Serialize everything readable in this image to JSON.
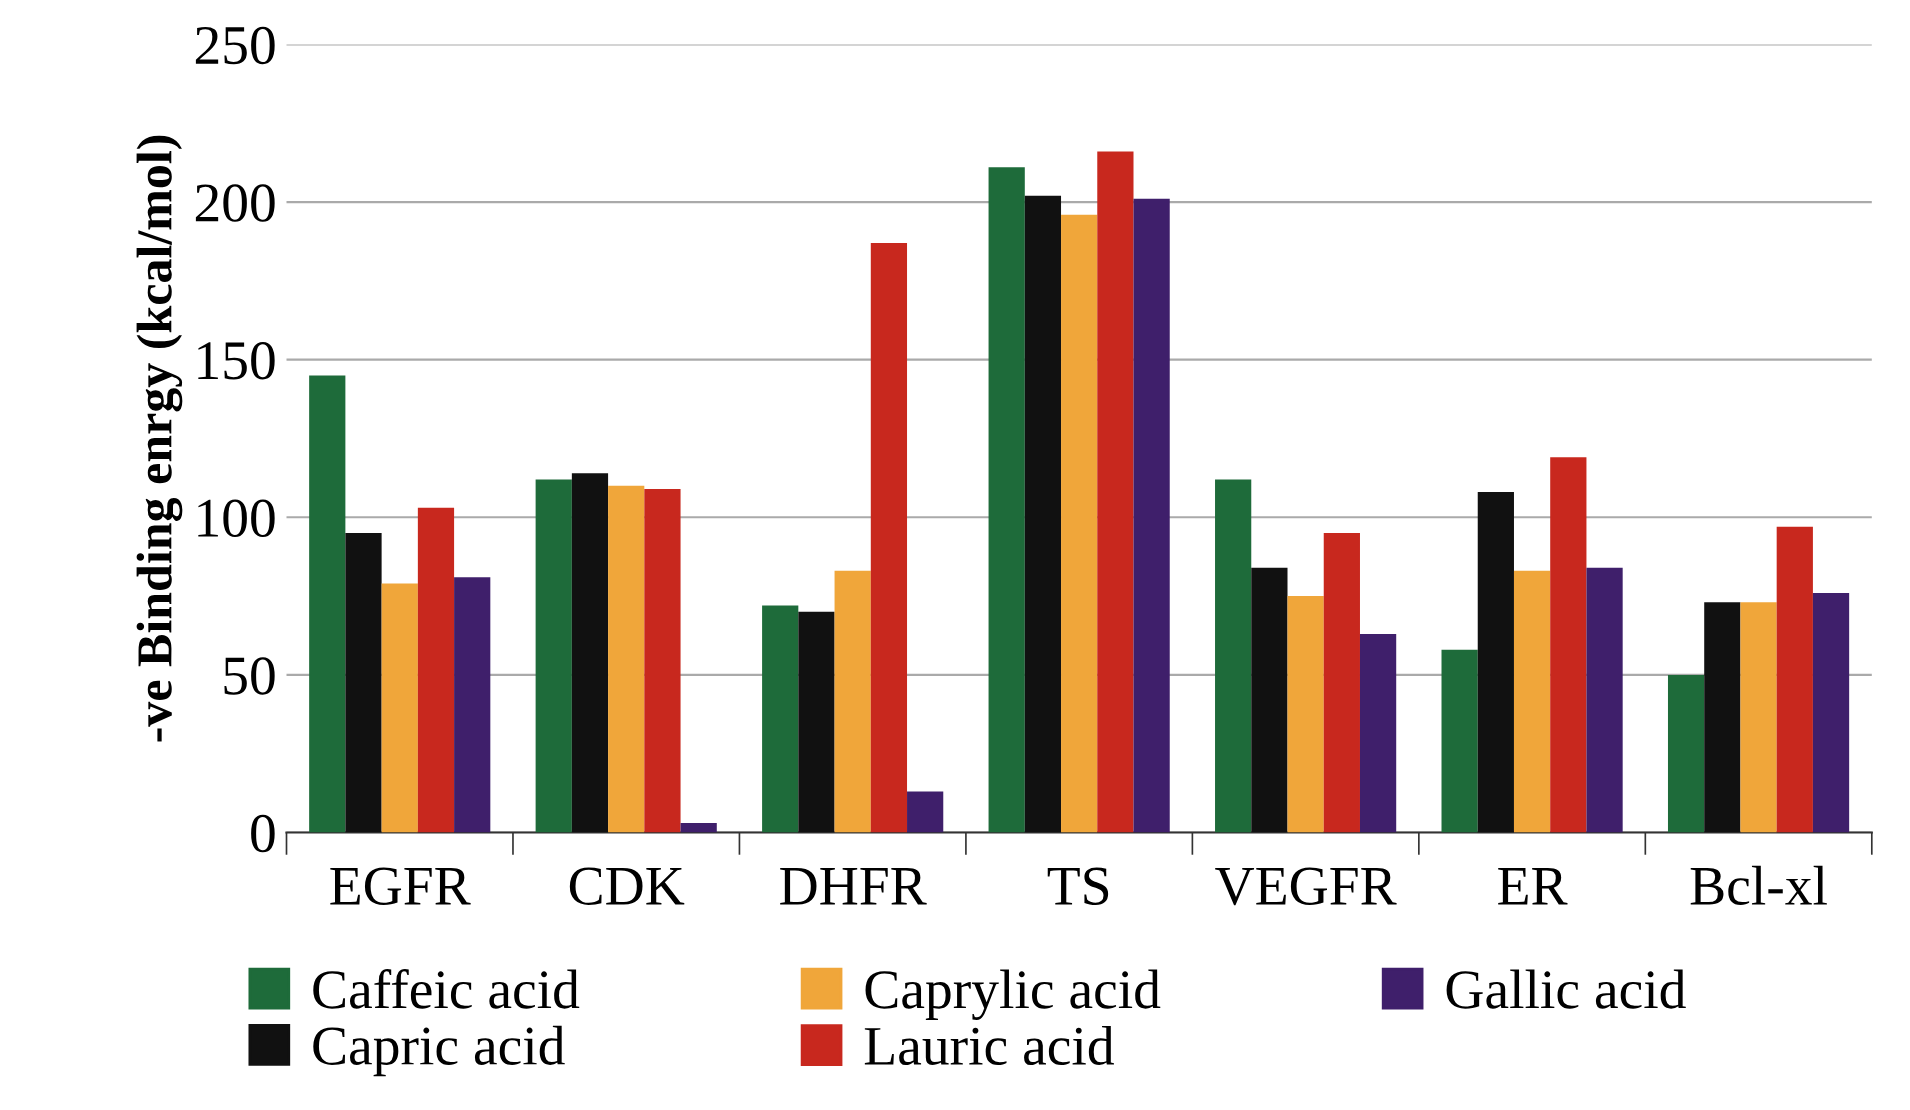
{
  "chart_data": {
    "type": "bar",
    "ylabel": "-ve Binding enrgy (kcal/mol)",
    "categories": [
      "EGFR",
      "CDK",
      "DHFR",
      "TS",
      "VEGFR",
      "ER",
      "Bcl-xl"
    ],
    "series": [
      {
        "name": "Caffeic acid",
        "color": "#1e6b3a",
        "values": [
          145,
          112,
          72,
          211,
          112,
          58,
          50
        ]
      },
      {
        "name": "Capric acid",
        "color": "#111111",
        "values": [
          95,
          114,
          70,
          202,
          84,
          108,
          73
        ]
      },
      {
        "name": "Caprylic acid",
        "color": "#f0a63a",
        "values": [
          79,
          110,
          83,
          196,
          75,
          83,
          73
        ]
      },
      {
        "name": "Lauric acid",
        "color": "#c8281e",
        "values": [
          103,
          109,
          187,
          216,
          95,
          119,
          97
        ]
      },
      {
        "name": "Gallic acid",
        "color": "#3f1f6b",
        "values": [
          81,
          3,
          13,
          201,
          63,
          84,
          76
        ]
      }
    ],
    "ylim": [
      0,
      250
    ],
    "yticks": [
      0,
      50,
      100,
      150,
      200,
      250
    ],
    "grid": "y",
    "legend": "bottom"
  }
}
